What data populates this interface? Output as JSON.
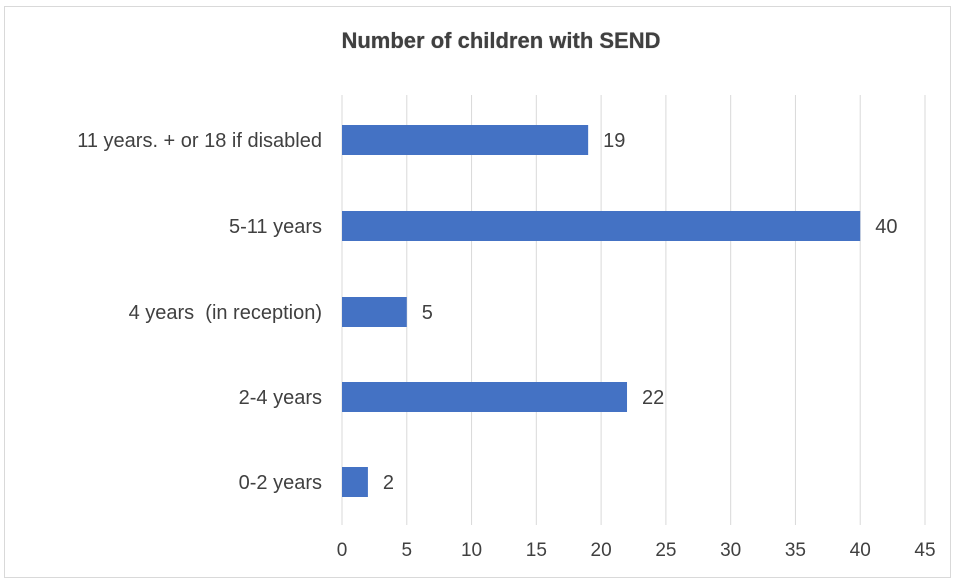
{
  "chart_data": {
    "type": "bar",
    "orientation": "horizontal",
    "title": "Number of children with SEND",
    "categories": [
      "11 years. + or 18 if disabled",
      "5-11 years",
      "4 years  (in reception)",
      "2-4 years",
      "0-2 years"
    ],
    "values": [
      19,
      40,
      5,
      22,
      2
    ],
    "data_labels": [
      "19",
      "40",
      "5",
      "22",
      "2"
    ],
    "xlim": [
      0,
      45
    ],
    "x_ticks": [
      "0",
      "5",
      "10",
      "15",
      "20",
      "25",
      "30",
      "35",
      "40",
      "45"
    ],
    "xlabel": "",
    "ylabel": "",
    "grid": true,
    "legend": "none",
    "colors": {
      "bar": "#4472C4",
      "grid": "#D9D9D9",
      "text": "#404040",
      "title": "#404040"
    }
  }
}
